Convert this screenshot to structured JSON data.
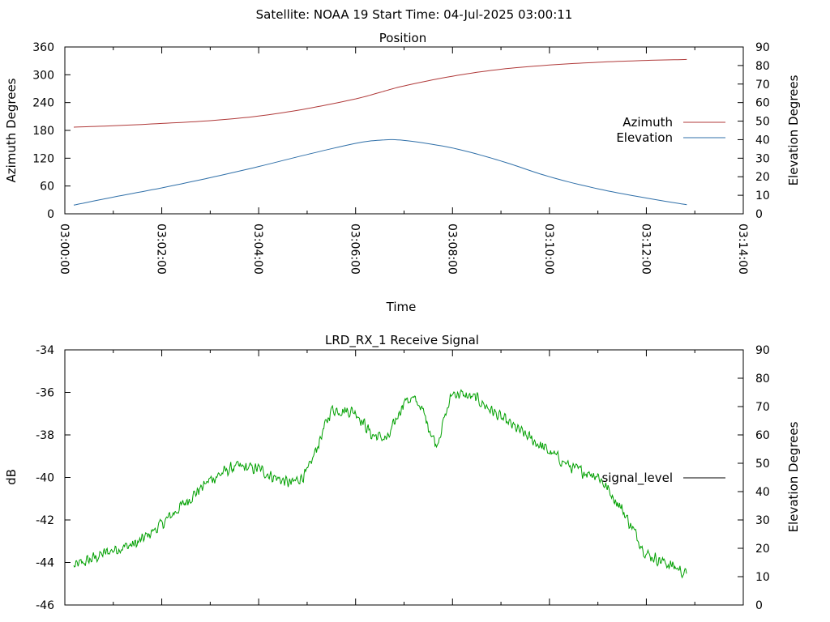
{
  "figure": {
    "title": "Satellite: NOAA 19    Start Time: 04-Jul-2025 03:00:11"
  },
  "chart_data": [
    {
      "type": "line",
      "title": "Position",
      "xlabel": "Time",
      "ylabel": "Azimuth Degrees",
      "y2label": "Elevation Degrees",
      "x_unit": "time (HH:MM:SS)",
      "xlim": [
        "03:00:00",
        "03:14:00"
      ],
      "x_ticks": [
        "03:00:00",
        "03:02:00",
        "03:04:00",
        "03:06:00",
        "03:08:00",
        "03:10:00",
        "03:12:00",
        "03:14:00"
      ],
      "ylim": [
        0,
        360
      ],
      "y_ticks": [
        0,
        60,
        120,
        180,
        240,
        300,
        360
      ],
      "y2lim": [
        0,
        90
      ],
      "y2_ticks": [
        0,
        10,
        20,
        30,
        40,
        50,
        60,
        70,
        80,
        90
      ],
      "legend_position": "right",
      "grid": false,
      "series": [
        {
          "name": "Azimuth",
          "axis": "left",
          "color": "#b03a3a",
          "x": [
            "03:00:11",
            "03:01:00",
            "03:02:00",
            "03:03:00",
            "03:04:00",
            "03:05:00",
            "03:06:00",
            "03:06:30",
            "03:07:00",
            "03:08:00",
            "03:09:00",
            "03:10:00",
            "03:11:00",
            "03:12:00",
            "03:12:50"
          ],
          "y": [
            187,
            190,
            195,
            201,
            211,
            227,
            248,
            262,
            276,
            297,
            312,
            321,
            327,
            331,
            333
          ]
        },
        {
          "name": "Elevation",
          "axis": "right",
          "color": "#2f6fa8",
          "x": [
            "03:00:11",
            "03:01:00",
            "03:02:00",
            "03:03:00",
            "03:04:00",
            "03:05:00",
            "03:06:00",
            "03:06:30",
            "03:07:00",
            "03:08:00",
            "03:09:00",
            "03:10:00",
            "03:11:00",
            "03:12:00",
            "03:12:50"
          ],
          "y": [
            4.7,
            9,
            14,
            19.5,
            25.5,
            32,
            38,
            39.7,
            39.6,
            35.5,
            28.5,
            20,
            13.5,
            8.5,
            4.9
          ]
        }
      ]
    },
    {
      "type": "line",
      "title": "LRD_RX_1 Receive Signal",
      "xlabel": "",
      "ylabel": "dB",
      "y2label": "Elevation Degrees",
      "x_unit": "time (HH:MM:SS)",
      "xlim": [
        "03:00:00",
        "03:14:00"
      ],
      "ylim": [
        -46,
        -34
      ],
      "y_ticks": [
        -46,
        -44,
        -42,
        -40,
        -38,
        -36,
        -34
      ],
      "y2lim": [
        0,
        90
      ],
      "y2_ticks": [
        0,
        10,
        20,
        30,
        40,
        50,
        60,
        70,
        80,
        90
      ],
      "legend_position": "right",
      "grid": false,
      "noise_amplitude_db": 0.35,
      "series": [
        {
          "name": "signal_level",
          "color": "#00a000",
          "x": [
            "03:00:11",
            "03:01:00",
            "03:01:30",
            "03:02:00",
            "03:03:00",
            "03:03:30",
            "03:04:00",
            "03:04:20",
            "03:04:40",
            "03:05:00",
            "03:05:30",
            "03:06:00",
            "03:06:20",
            "03:06:40",
            "03:07:00",
            "03:07:10",
            "03:07:20",
            "03:07:40",
            "03:08:00",
            "03:08:30",
            "03:09:00",
            "03:09:30",
            "03:10:00",
            "03:10:30",
            "03:11:00",
            "03:11:30",
            "03:12:00",
            "03:12:40",
            "03:12:50"
          ],
          "y": [
            -44.2,
            -43.4,
            -43.1,
            -42.2,
            -40.1,
            -39.5,
            -39.6,
            -40.0,
            -40.3,
            -39.8,
            -36.8,
            -36.9,
            -38.0,
            -38.2,
            -36.4,
            -36.3,
            -36.6,
            -38.5,
            -36.0,
            -36.3,
            -37.2,
            -38.0,
            -38.8,
            -39.6,
            -39.9,
            -41.5,
            -43.6,
            -44.3,
            -44.6
          ]
        }
      ]
    }
  ]
}
